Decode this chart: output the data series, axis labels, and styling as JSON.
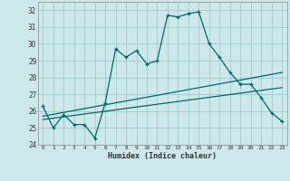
{
  "title": "",
  "xlabel": "Humidex (Indice chaleur)",
  "xlim": [
    -0.5,
    23.5
  ],
  "ylim": [
    24.0,
    32.5
  ],
  "yticks": [
    24,
    25,
    26,
    27,
    28,
    29,
    30,
    31,
    32
  ],
  "xticks": [
    0,
    1,
    2,
    3,
    4,
    5,
    6,
    7,
    8,
    9,
    10,
    11,
    12,
    13,
    14,
    15,
    16,
    17,
    18,
    19,
    20,
    21,
    22,
    23
  ],
  "bg_color": "#cce8ea",
  "grid_color": "#9fc8ca",
  "line_color": "#006868",
  "line1_x": [
    0,
    1,
    2,
    3,
    4,
    5,
    6,
    7,
    8,
    9,
    10,
    11,
    12,
    13,
    14,
    15,
    16,
    17,
    18,
    19,
    20,
    21,
    22,
    23
  ],
  "line1_y": [
    26.3,
    25.0,
    25.8,
    25.2,
    25.2,
    24.4,
    26.5,
    29.7,
    29.2,
    29.6,
    28.8,
    29.0,
    31.7,
    31.6,
    31.8,
    31.9,
    30.0,
    29.2,
    28.3,
    27.6,
    27.6,
    26.8,
    25.9,
    25.4
  ],
  "line2_x": [
    0,
    23
  ],
  "line2_y": [
    25.7,
    28.3
  ],
  "line3_x": [
    0,
    23
  ],
  "line3_y": [
    25.5,
    27.4
  ]
}
